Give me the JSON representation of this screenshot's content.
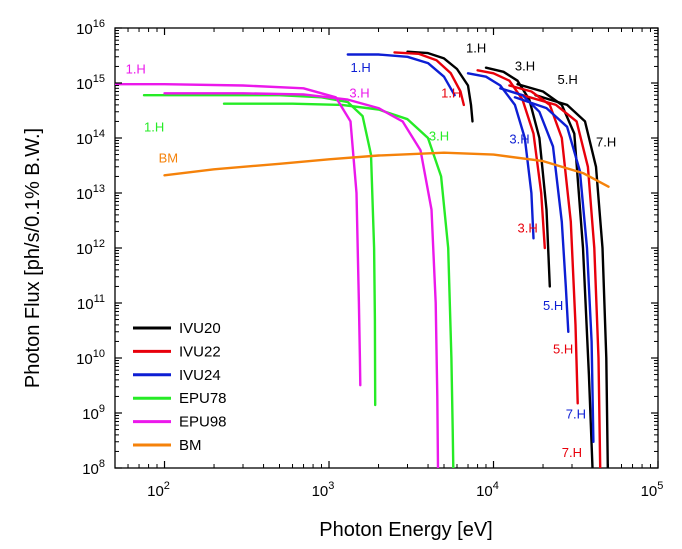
{
  "chart_data": {
    "type": "line",
    "xlabel": "Photon Energy [eV]",
    "ylabel": "Photon Flux [ph/s/0.1% B.W.]",
    "xscale": "log",
    "yscale": "log",
    "xlim": [
      50,
      100000
    ],
    "ylim": [
      100000000,
      10000000000000000
    ],
    "grid": false,
    "legend_position": "bottom-left",
    "x_ticks": [
      {
        "base": "10",
        "exp": "2",
        "value": 100
      },
      {
        "base": "10",
        "exp": "3",
        "value": 1000
      },
      {
        "base": "10",
        "exp": "4",
        "value": 10000
      },
      {
        "base": "10",
        "exp": "5",
        "value": 100000
      }
    ],
    "y_ticks": [
      {
        "base": "10",
        "exp": "8",
        "value": 100000000.0
      },
      {
        "base": "10",
        "exp": "9",
        "value": 1000000000.0
      },
      {
        "base": "10",
        "exp": "10",
        "value": 10000000000.0
      },
      {
        "base": "10",
        "exp": "11",
        "value": 100000000000.0
      },
      {
        "base": "10",
        "exp": "12",
        "value": 1000000000000.0
      },
      {
        "base": "10",
        "exp": "13",
        "value": 10000000000000.0
      },
      {
        "base": "10",
        "exp": "14",
        "value": 100000000000000.0
      },
      {
        "base": "10",
        "exp": "15",
        "value": 1000000000000000.0
      },
      {
        "base": "10",
        "exp": "16",
        "value": 1e+16
      }
    ],
    "series": [
      {
        "name": "IVU20",
        "color": "#000000",
        "curves": [
          {
            "x": [
              3000,
              4000,
              5000,
              6000,
              7000,
              7300,
              7450
            ],
            "y": [
              3700000000000000.0,
              3500000000000000.0,
              2800000000000000.0,
              1800000000000000.0,
              900000000000000.0,
              400000000000000.0,
              200000000000000.0
            ]
          },
          {
            "x": [
              9000,
              11500,
              14000,
              16500,
              19000,
              21000,
              22000
            ],
            "y": [
              1900000000000000.0,
              1600000000000000.0,
              1100000000000000.0,
              500000000000000.0,
              100000000000000.0,
              5000000000000.0,
              200000000000.0
            ]
          },
          {
            "x": [
              14000,
              20000,
              26000,
              31000,
              35000,
              38000,
              40000
            ],
            "y": [
              950000000000000.0,
              700000000000000.0,
              400000000000000.0,
              120000000000000.0,
              1000000000000.0,
              5000000000.0,
              100000000.0
            ]
          },
          {
            "x": [
              18000,
              28000,
              36000,
              42000,
              46000,
              48500,
              49500
            ],
            "y": [
              600000000000000.0,
              400000000000000.0,
              200000000000000.0,
              30000000000000.0,
              1000000000000.0,
              10000000000.0,
              100000000.0
            ]
          }
        ]
      },
      {
        "name": "IVU22",
        "color": "#e8000b",
        "curves": [
          {
            "x": [
              2500,
              3500,
              4500,
              5500,
              6300,
              6600
            ],
            "y": [
              3600000000000000.0,
              3400000000000000.0,
              2600000000000000.0,
              1500000000000000.0,
              700000000000000.0,
              400000000000000.0
            ]
          },
          {
            "x": [
              8000,
              10000,
              12500,
              15000,
              17500,
              19500,
              20500
            ],
            "y": [
              1700000000000000.0,
              1500000000000000.0,
              1100000000000000.0,
              500000000000000.0,
              120000000000000.0,
              10000000000000.0,
              1000000000000.0
            ]
          },
          {
            "x": [
              12500,
              17000,
              22000,
              26000,
              29500,
              31500,
              32500
            ],
            "y": [
              900000000000000.0,
              700000000000000.0,
              400000000000000.0,
              100000000000000.0,
              3000000000000.0,
              40000000000.0,
              1500000000.0
            ]
          },
          {
            "x": [
              15000,
              24000,
              32000,
              37500,
              41000,
              43500,
              44500
            ],
            "y": [
              600000000000000.0,
              400000000000000.0,
              200000000000000.0,
              30000000000000.0,
              1000000000000.0,
              10000000000.0,
              100000000.0
            ]
          }
        ]
      },
      {
        "name": "IVU24",
        "color": "#0d1ed4",
        "curves": [
          {
            "x": [
              1300,
              2000,
              3000,
              4000,
              5000,
              5800
            ],
            "y": [
              3300000000000000.0,
              3300000000000000.0,
              3000000000000000.0,
              2300000000000000.0,
              1300000000000000.0,
              600000000000000.0
            ]
          },
          {
            "x": [
              7000,
              9000,
              11000,
              13500,
              15500,
              17000,
              17500
            ],
            "y": [
              1500000000000000.0,
              1300000000000000.0,
              900000000000000.0,
              400000000000000.0,
              100000000000000.0,
              10000000000000.0,
              1500000000000.0
            ]
          },
          {
            "x": [
              11000,
              15000,
              19000,
              23000,
              26000,
              27500,
              28500
            ],
            "y": [
              800000000000000.0,
              600000000000000.0,
              300000000000000.0,
              70000000000000.0,
              3000000000000.0,
              200000000000.0,
              30000000000.0
            ]
          },
          {
            "x": [
              13500,
              21000,
              28000,
              33500,
              37000,
              39500,
              40500
            ],
            "y": [
              550000000000000.0,
              350000000000000.0,
              160000000000000.0,
              25000000000000.0,
              1000000000000.0,
              20000000000.0,
              300000000.0
            ]
          }
        ]
      },
      {
        "name": "EPU78",
        "color": "#26eb26",
        "curves": [
          {
            "x": [
              75,
              200,
              500,
              900,
              1300,
              1600,
              1800,
              1880,
              1900,
              1910
            ],
            "y": [
              600000000000000.0,
              600000000000000.0,
              600000000000000.0,
              550000000000000.0,
              450000000000000.0,
              250000000000000.0,
              50000000000000.0,
              1000000000000.0,
              50000000000.0,
              1400000000.0
            ]
          },
          {
            "x": [
              230,
              600,
              1200,
              2000,
              3000,
              4000,
              4800,
              5300,
              5550,
              5650,
              5700
            ],
            "y": [
              420000000000000.0,
              420000000000000.0,
              400000000000000.0,
              330000000000000.0,
              220000000000000.0,
              100000000000000.0,
              20000000000000.0,
              1000000000000.0,
              10000000000.0,
              500000000.0,
              100000000.0
            ]
          }
        ]
      },
      {
        "name": "EPU98",
        "color": "#eb18eb",
        "curves": [
          {
            "x": [
              50,
              100,
              300,
              700,
              1100,
              1350,
              1470,
              1520,
              1540,
              1550
            ],
            "y": [
              950000000000000.0,
              950000000000000.0,
              900000000000000.0,
              800000000000000.0,
              550000000000000.0,
              200000000000000.0,
              10000000000000.0,
              100000000000.0,
              10000000000.0,
              3200000000.0
            ]
          },
          {
            "x": [
              100,
              300,
              700,
              1300,
              2000,
              2800,
              3600,
              4200,
              4450,
              4550,
              4600
            ],
            "y": [
              650000000000000.0,
              650000000000000.0,
              620000000000000.0,
              500000000000000.0,
              350000000000000.0,
              200000000000000.0,
              60000000000000.0,
              5000000000000.0,
              100000000000.0,
              2000000000.0,
              100000000.0
            ]
          }
        ]
      },
      {
        "name": "BM",
        "color": "#f5820a",
        "curves": [
          {
            "x": [
              100,
              200,
              500,
              1000,
              2000,
              5000,
              10000,
              20000,
              35000,
              50000
            ],
            "y": [
              21000000000000.0,
              27000000000000.0,
              34000000000000.0,
              41000000000000.0,
              48000000000000.0,
              54000000000000.0,
              50000000000000.0,
              38000000000000.0,
              23000000000000.0,
              13000000000000.0
            ]
          }
        ]
      }
    ],
    "annotations": [
      {
        "text": "1.H",
        "color": "#000000",
        "x": 6800,
        "y": 3600000000000000.0
      },
      {
        "text": "3.H",
        "color": "#000000",
        "x": 13500,
        "y": 1700000000000000.0
      },
      {
        "text": "5.H",
        "color": "#000000",
        "x": 24500,
        "y": 950000000000000.0
      },
      {
        "text": "7.H",
        "color": "#000000",
        "x": 42000,
        "y": 70000000000000.0
      },
      {
        "text": "1.H",
        "color": "#e8000b",
        "x": 4800,
        "y": 550000000000000.0
      },
      {
        "text": "3.H",
        "color": "#e8000b",
        "x": 14000,
        "y": 1900000000000.0
      },
      {
        "text": "5.H",
        "color": "#e8000b",
        "x": 23000,
        "y": 12000000000.0
      },
      {
        "text": "7.H",
        "color": "#e8000b",
        "x": 26000,
        "y": 160000000.0
      },
      {
        "text": "1.H",
        "color": "#0d1ed4",
        "x": 1350,
        "y": 1600000000000000.0
      },
      {
        "text": "3.H",
        "color": "#0d1ed4",
        "x": 12500,
        "y": 80000000000000.0
      },
      {
        "text": "5.H",
        "color": "#0d1ed4",
        "x": 20000,
        "y": 75000000000.0
      },
      {
        "text": "7.H",
        "color": "#0d1ed4",
        "x": 27500,
        "y": 800000000.0
      },
      {
        "text": "1.H",
        "color": "#26eb26",
        "x": 75,
        "y": 130000000000000.0
      },
      {
        "text": "3.H",
        "color": "#26eb26",
        "x": 4050,
        "y": 90000000000000.0
      },
      {
        "text": "1.H",
        "color": "#eb18eb",
        "x": 58,
        "y": 1500000000000000.0
      },
      {
        "text": "3.H",
        "color": "#eb18eb",
        "x": 1330,
        "y": 550000000000000.0
      },
      {
        "text": "BM",
        "color": "#f5820a",
        "x": 92,
        "y": 36000000000000.0
      }
    ]
  }
}
